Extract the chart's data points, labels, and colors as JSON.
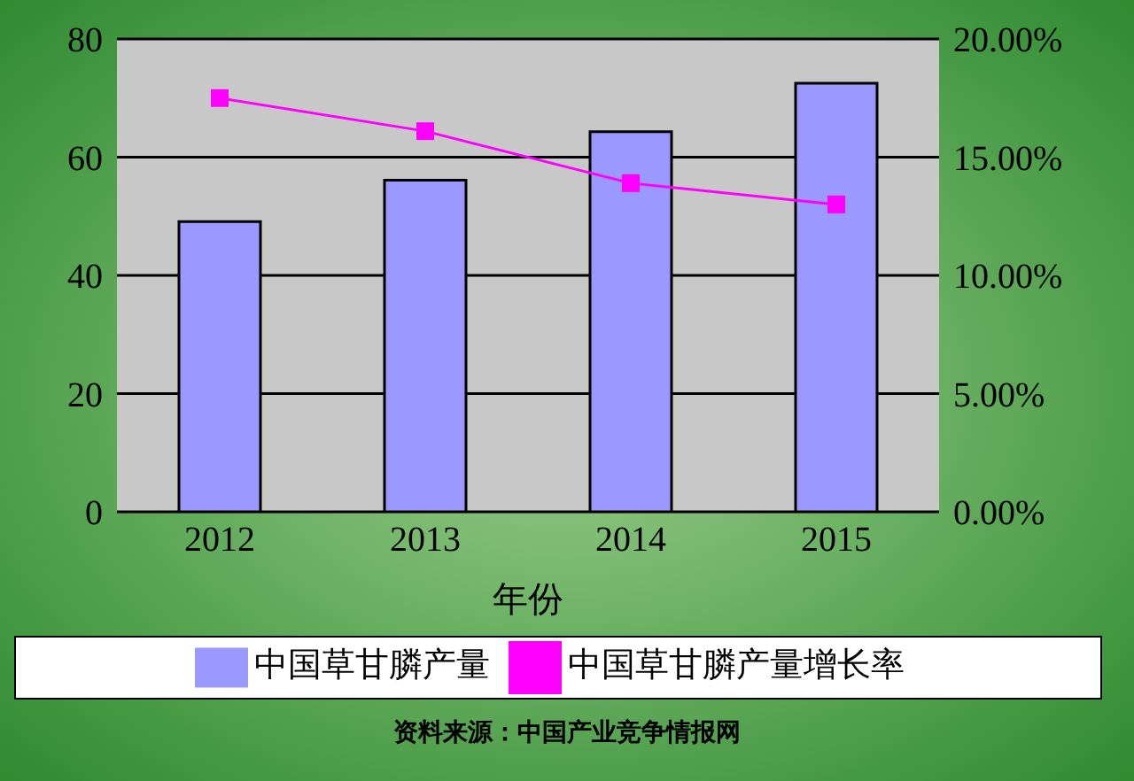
{
  "chart_data": {
    "type": "bar",
    "xlabel": "年份",
    "categories": [
      "2012",
      "2013",
      "2014",
      "2015"
    ],
    "series": [
      {
        "name": "中国草甘膦产量",
        "color": "#9999ff",
        "values": [
          49.1,
          56.1,
          64.3,
          72.5
        ]
      },
      {
        "name": "中国草甘膦产量增长率",
        "type": "line",
        "axis": "y2",
        "color": "#ff00ff",
        "values": [
          17.5,
          16.1,
          13.9,
          13.0
        ]
      }
    ],
    "ylim": [
      0,
      80
    ],
    "yticks": [
      0,
      20,
      40,
      60,
      80
    ],
    "y2lim": [
      0,
      20
    ],
    "y2ticks": [
      {
        "value": 0,
        "label": "0.00%"
      },
      {
        "value": 5,
        "label": "5.00%"
      },
      {
        "value": 10,
        "label": "10.00%"
      },
      {
        "value": 15,
        "label": "15.00%"
      },
      {
        "value": 20,
        "label": "20.00%"
      }
    ],
    "grid": "y",
    "legend": "bottom",
    "marker": "square",
    "annotations": [
      "资料来源：中国产业竞争情报网"
    ]
  }
}
